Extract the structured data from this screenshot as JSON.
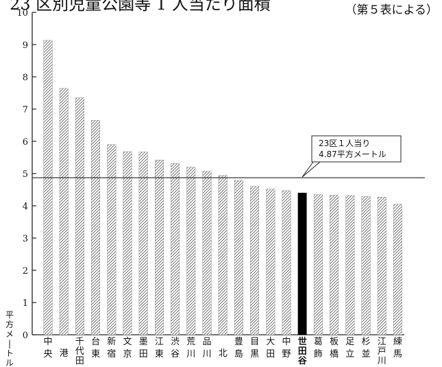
{
  "header_text": "23 区別児童公園等 1 人当たり面積",
  "source_note": "（第５表による）",
  "chart_data": {
    "type": "bar",
    "ylabel": "平方メートル",
    "ylim": [
      0,
      10
    ],
    "yticks": [
      0,
      1,
      2,
      3,
      4,
      5,
      6,
      7,
      8,
      9,
      10
    ],
    "grid": false,
    "categories": [
      "中央",
      "港",
      "千代田",
      "台東",
      "新宿",
      "文京",
      "墨田",
      "江東",
      "渋谷",
      "荒川",
      "品川",
      "北",
      "豊島",
      "目黒",
      "大田",
      "中野",
      "世田谷",
      "葛飾",
      "板橋",
      "足立",
      "杉並",
      "江戸川",
      "練馬"
    ],
    "values": [
      9.13,
      7.64,
      7.35,
      6.65,
      5.9,
      5.68,
      5.67,
      5.42,
      5.31,
      5.2,
      5.07,
      4.94,
      4.78,
      4.6,
      4.52,
      4.47,
      4.4,
      4.35,
      4.33,
      4.32,
      4.29,
      4.27,
      4.05
    ],
    "highlight": "世田谷",
    "highlight_color": "#000000",
    "bar_color": "#8a8a8a",
    "reference_line": {
      "value": 4.87,
      "label_line1": "23区１人当り",
      "label_line2": "4.87平方メートル"
    }
  }
}
